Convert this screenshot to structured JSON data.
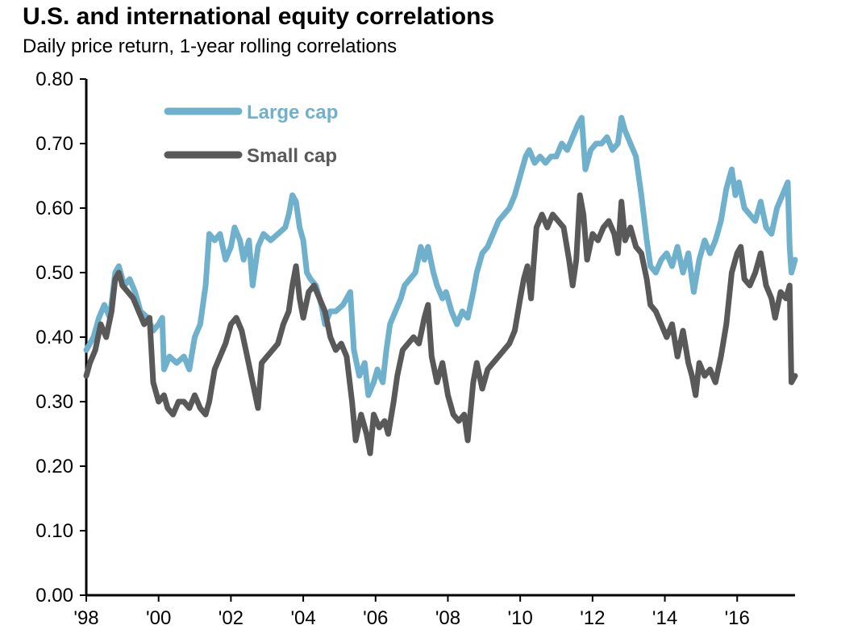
{
  "title": "U.S. and international equity correlations",
  "subtitle": "Daily price return, 1-year rolling correlations",
  "chart_data": {
    "type": "line",
    "title": "U.S. and international equity correlations",
    "subtitle": "Daily price return, 1-year rolling correlations",
    "xlabel": "",
    "ylabel": "",
    "x_range": [
      1998.0,
      2017.6
    ],
    "ylim": [
      0.0,
      0.8
    ],
    "x_ticks": [
      {
        "label": "'98",
        "value": 1998
      },
      {
        "label": "'00",
        "value": 2000
      },
      {
        "label": "'02",
        "value": 2002
      },
      {
        "label": "'04",
        "value": 2004
      },
      {
        "label": "'06",
        "value": 2006
      },
      {
        "label": "'08",
        "value": 2008
      },
      {
        "label": "'10",
        "value": 2010
      },
      {
        "label": "'12",
        "value": 2012
      },
      {
        "label": "'14",
        "value": 2014
      },
      {
        "label": "'16",
        "value": 2016
      }
    ],
    "y_ticks": [
      "0.00",
      "0.10",
      "0.20",
      "0.30",
      "0.40",
      "0.50",
      "0.60",
      "0.70",
      "0.80"
    ],
    "grid": false,
    "legend_position": "top-left",
    "series": [
      {
        "name": "Large cap",
        "color": "#6fb1cc",
        "points": [
          [
            1998.0,
            0.38
          ],
          [
            1998.2,
            0.4
          ],
          [
            1998.35,
            0.43
          ],
          [
            1998.5,
            0.45
          ],
          [
            1998.65,
            0.43
          ],
          [
            1998.8,
            0.5
          ],
          [
            1998.9,
            0.51
          ],
          [
            1999.05,
            0.48
          ],
          [
            1999.2,
            0.49
          ],
          [
            1999.35,
            0.47
          ],
          [
            1999.5,
            0.44
          ],
          [
            1999.7,
            0.43
          ],
          [
            1999.85,
            0.41
          ],
          [
            2000.0,
            0.42
          ],
          [
            2000.1,
            0.43
          ],
          [
            2000.15,
            0.35
          ],
          [
            2000.3,
            0.37
          ],
          [
            2000.5,
            0.36
          ],
          [
            2000.7,
            0.37
          ],
          [
            2000.85,
            0.35
          ],
          [
            2001.0,
            0.4
          ],
          [
            2001.15,
            0.42
          ],
          [
            2001.3,
            0.48
          ],
          [
            2001.4,
            0.56
          ],
          [
            2001.55,
            0.55
          ],
          [
            2001.7,
            0.56
          ],
          [
            2001.85,
            0.52
          ],
          [
            2002.0,
            0.54
          ],
          [
            2002.1,
            0.57
          ],
          [
            2002.25,
            0.55
          ],
          [
            2002.35,
            0.52
          ],
          [
            2002.5,
            0.55
          ],
          [
            2002.6,
            0.48
          ],
          [
            2002.75,
            0.54
          ],
          [
            2002.9,
            0.56
          ],
          [
            2003.1,
            0.55
          ],
          [
            2003.3,
            0.56
          ],
          [
            2003.5,
            0.57
          ],
          [
            2003.6,
            0.59
          ],
          [
            2003.7,
            0.62
          ],
          [
            2003.8,
            0.61
          ],
          [
            2003.9,
            0.57
          ],
          [
            2004.0,
            0.55
          ],
          [
            2004.1,
            0.5
          ],
          [
            2004.2,
            0.49
          ],
          [
            2004.35,
            0.48
          ],
          [
            2004.5,
            0.45
          ],
          [
            2004.6,
            0.42
          ],
          [
            2004.75,
            0.44
          ],
          [
            2004.9,
            0.44
          ],
          [
            2005.1,
            0.45
          ],
          [
            2005.3,
            0.47
          ],
          [
            2005.4,
            0.38
          ],
          [
            2005.55,
            0.34
          ],
          [
            2005.7,
            0.36
          ],
          [
            2005.8,
            0.31
          ],
          [
            2005.95,
            0.33
          ],
          [
            2006.05,
            0.35
          ],
          [
            2006.2,
            0.33
          ],
          [
            2006.3,
            0.38
          ],
          [
            2006.4,
            0.42
          ],
          [
            2006.55,
            0.44
          ],
          [
            2006.7,
            0.46
          ],
          [
            2006.8,
            0.48
          ],
          [
            2006.95,
            0.49
          ],
          [
            2007.1,
            0.5
          ],
          [
            2007.25,
            0.54
          ],
          [
            2007.35,
            0.52
          ],
          [
            2007.45,
            0.54
          ],
          [
            2007.6,
            0.5
          ],
          [
            2007.7,
            0.48
          ],
          [
            2007.85,
            0.46
          ],
          [
            2007.95,
            0.47
          ],
          [
            2008.1,
            0.44
          ],
          [
            2008.25,
            0.42
          ],
          [
            2008.4,
            0.44
          ],
          [
            2008.55,
            0.43
          ],
          [
            2008.7,
            0.47
          ],
          [
            2008.8,
            0.5
          ],
          [
            2008.95,
            0.53
          ],
          [
            2009.1,
            0.54
          ],
          [
            2009.25,
            0.56
          ],
          [
            2009.4,
            0.58
          ],
          [
            2009.55,
            0.59
          ],
          [
            2009.7,
            0.6
          ],
          [
            2009.85,
            0.62
          ],
          [
            2009.95,
            0.64
          ],
          [
            2010.05,
            0.66
          ],
          [
            2010.15,
            0.68
          ],
          [
            2010.25,
            0.69
          ],
          [
            2010.4,
            0.67
          ],
          [
            2010.55,
            0.68
          ],
          [
            2010.7,
            0.67
          ],
          [
            2010.85,
            0.68
          ],
          [
            2011.0,
            0.68
          ],
          [
            2011.15,
            0.7
          ],
          [
            2011.3,
            0.69
          ],
          [
            2011.45,
            0.71
          ],
          [
            2011.6,
            0.73
          ],
          [
            2011.7,
            0.74
          ],
          [
            2011.8,
            0.66
          ],
          [
            2011.95,
            0.69
          ],
          [
            2012.1,
            0.7
          ],
          [
            2012.25,
            0.7
          ],
          [
            2012.4,
            0.71
          ],
          [
            2012.55,
            0.69
          ],
          [
            2012.7,
            0.7
          ],
          [
            2012.8,
            0.74
          ],
          [
            2012.9,
            0.72
          ],
          [
            2013.05,
            0.7
          ],
          [
            2013.2,
            0.68
          ],
          [
            2013.35,
            0.62
          ],
          [
            2013.5,
            0.55
          ],
          [
            2013.6,
            0.51
          ],
          [
            2013.75,
            0.5
          ],
          [
            2013.9,
            0.52
          ],
          [
            2014.05,
            0.53
          ],
          [
            2014.2,
            0.51
          ],
          [
            2014.35,
            0.54
          ],
          [
            2014.5,
            0.5
          ],
          [
            2014.65,
            0.53
          ],
          [
            2014.8,
            0.47
          ],
          [
            2014.95,
            0.52
          ],
          [
            2015.1,
            0.55
          ],
          [
            2015.25,
            0.53
          ],
          [
            2015.4,
            0.55
          ],
          [
            2015.55,
            0.58
          ],
          [
            2015.7,
            0.63
          ],
          [
            2015.85,
            0.66
          ],
          [
            2015.95,
            0.62
          ],
          [
            2016.05,
            0.64
          ],
          [
            2016.2,
            0.6
          ],
          [
            2016.35,
            0.59
          ],
          [
            2016.5,
            0.58
          ],
          [
            2016.65,
            0.61
          ],
          [
            2016.8,
            0.57
          ],
          [
            2016.95,
            0.56
          ],
          [
            2017.1,
            0.6
          ],
          [
            2017.25,
            0.62
          ],
          [
            2017.4,
            0.64
          ],
          [
            2017.45,
            0.54
          ],
          [
            2017.5,
            0.5
          ],
          [
            2017.6,
            0.52
          ]
        ]
      },
      {
        "name": "Small cap",
        "color": "#595959",
        "points": [
          [
            1998.0,
            0.34
          ],
          [
            1998.1,
            0.36
          ],
          [
            1998.25,
            0.38
          ],
          [
            1998.4,
            0.42
          ],
          [
            1998.55,
            0.4
          ],
          [
            1998.7,
            0.44
          ],
          [
            1998.8,
            0.49
          ],
          [
            1998.9,
            0.5
          ],
          [
            1999.0,
            0.48
          ],
          [
            1999.15,
            0.47
          ],
          [
            1999.3,
            0.46
          ],
          [
            1999.45,
            0.44
          ],
          [
            1999.6,
            0.42
          ],
          [
            1999.75,
            0.43
          ],
          [
            1999.85,
            0.33
          ],
          [
            2000.0,
            0.3
          ],
          [
            2000.15,
            0.31
          ],
          [
            2000.25,
            0.29
          ],
          [
            2000.4,
            0.28
          ],
          [
            2000.55,
            0.3
          ],
          [
            2000.7,
            0.3
          ],
          [
            2000.85,
            0.29
          ],
          [
            2001.0,
            0.31
          ],
          [
            2001.15,
            0.29
          ],
          [
            2001.3,
            0.28
          ],
          [
            2001.4,
            0.3
          ],
          [
            2001.55,
            0.35
          ],
          [
            2001.7,
            0.37
          ],
          [
            2001.85,
            0.39
          ],
          [
            2002.0,
            0.42
          ],
          [
            2002.15,
            0.43
          ],
          [
            2002.3,
            0.41
          ],
          [
            2002.45,
            0.37
          ],
          [
            2002.6,
            0.33
          ],
          [
            2002.75,
            0.29
          ],
          [
            2002.85,
            0.36
          ],
          [
            2003.0,
            0.37
          ],
          [
            2003.15,
            0.38
          ],
          [
            2003.3,
            0.39
          ],
          [
            2003.45,
            0.42
          ],
          [
            2003.6,
            0.44
          ],
          [
            2003.7,
            0.48
          ],
          [
            2003.8,
            0.51
          ],
          [
            2003.9,
            0.46
          ],
          [
            2004.0,
            0.43
          ],
          [
            2004.15,
            0.47
          ],
          [
            2004.3,
            0.48
          ],
          [
            2004.45,
            0.46
          ],
          [
            2004.6,
            0.44
          ],
          [
            2004.75,
            0.4
          ],
          [
            2004.9,
            0.38
          ],
          [
            2005.05,
            0.39
          ],
          [
            2005.2,
            0.37
          ],
          [
            2005.35,
            0.3
          ],
          [
            2005.45,
            0.24
          ],
          [
            2005.6,
            0.28
          ],
          [
            2005.75,
            0.25
          ],
          [
            2005.85,
            0.22
          ],
          [
            2005.95,
            0.28
          ],
          [
            2006.1,
            0.26
          ],
          [
            2006.25,
            0.27
          ],
          [
            2006.35,
            0.25
          ],
          [
            2006.5,
            0.3
          ],
          [
            2006.6,
            0.34
          ],
          [
            2006.75,
            0.38
          ],
          [
            2006.9,
            0.39
          ],
          [
            2007.05,
            0.4
          ],
          [
            2007.2,
            0.39
          ],
          [
            2007.35,
            0.43
          ],
          [
            2007.45,
            0.45
          ],
          [
            2007.55,
            0.37
          ],
          [
            2007.7,
            0.33
          ],
          [
            2007.85,
            0.36
          ],
          [
            2008.0,
            0.31
          ],
          [
            2008.15,
            0.28
          ],
          [
            2008.3,
            0.27
          ],
          [
            2008.45,
            0.28
          ],
          [
            2008.55,
            0.24
          ],
          [
            2008.7,
            0.33
          ],
          [
            2008.8,
            0.36
          ],
          [
            2008.95,
            0.32
          ],
          [
            2009.1,
            0.35
          ],
          [
            2009.25,
            0.36
          ],
          [
            2009.4,
            0.37
          ],
          [
            2009.55,
            0.38
          ],
          [
            2009.7,
            0.39
          ],
          [
            2009.85,
            0.41
          ],
          [
            2010.0,
            0.46
          ],
          [
            2010.1,
            0.49
          ],
          [
            2010.2,
            0.51
          ],
          [
            2010.3,
            0.46
          ],
          [
            2010.45,
            0.57
          ],
          [
            2010.6,
            0.59
          ],
          [
            2010.75,
            0.57
          ],
          [
            2010.9,
            0.59
          ],
          [
            2011.05,
            0.58
          ],
          [
            2011.2,
            0.57
          ],
          [
            2011.35,
            0.52
          ],
          [
            2011.45,
            0.48
          ],
          [
            2011.55,
            0.52
          ],
          [
            2011.65,
            0.62
          ],
          [
            2011.75,
            0.59
          ],
          [
            2011.85,
            0.52
          ],
          [
            2012.0,
            0.56
          ],
          [
            2012.15,
            0.55
          ],
          [
            2012.3,
            0.57
          ],
          [
            2012.45,
            0.58
          ],
          [
            2012.6,
            0.56
          ],
          [
            2012.7,
            0.53
          ],
          [
            2012.8,
            0.61
          ],
          [
            2012.9,
            0.55
          ],
          [
            2013.05,
            0.57
          ],
          [
            2013.2,
            0.54
          ],
          [
            2013.35,
            0.53
          ],
          [
            2013.5,
            0.49
          ],
          [
            2013.6,
            0.45
          ],
          [
            2013.75,
            0.44
          ],
          [
            2013.9,
            0.42
          ],
          [
            2014.05,
            0.4
          ],
          [
            2014.2,
            0.42
          ],
          [
            2014.35,
            0.37
          ],
          [
            2014.5,
            0.41
          ],
          [
            2014.65,
            0.36
          ],
          [
            2014.75,
            0.34
          ],
          [
            2014.85,
            0.31
          ],
          [
            2014.95,
            0.36
          ],
          [
            2015.1,
            0.34
          ],
          [
            2015.25,
            0.35
          ],
          [
            2015.4,
            0.33
          ],
          [
            2015.55,
            0.37
          ],
          [
            2015.7,
            0.42
          ],
          [
            2015.85,
            0.5
          ],
          [
            2016.0,
            0.53
          ],
          [
            2016.1,
            0.54
          ],
          [
            2016.2,
            0.49
          ],
          [
            2016.35,
            0.48
          ],
          [
            2016.5,
            0.5
          ],
          [
            2016.65,
            0.53
          ],
          [
            2016.8,
            0.48
          ],
          [
            2016.95,
            0.46
          ],
          [
            2017.05,
            0.43
          ],
          [
            2017.2,
            0.47
          ],
          [
            2017.35,
            0.46
          ],
          [
            2017.45,
            0.48
          ],
          [
            2017.5,
            0.33
          ],
          [
            2017.6,
            0.34
          ]
        ]
      }
    ]
  }
}
